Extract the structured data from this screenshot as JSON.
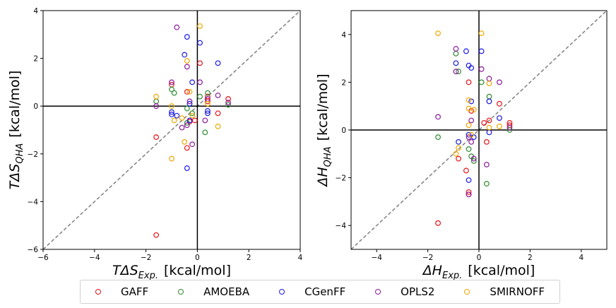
{
  "legend": [
    {
      "name": "GAFF",
      "color": "#e8141a"
    },
    {
      "name": "AMOEBA",
      "color": "#2e8b2e"
    },
    {
      "name": "CGenFF",
      "color": "#1a1ae6"
    },
    {
      "name": "OPLS2",
      "color": "#8b1a9b"
    },
    {
      "name": "SMIRNOFF",
      "color": "#f0a800"
    }
  ],
  "chart_data": [
    {
      "type": "scatter",
      "title": "",
      "xlabel_main": "TΔS",
      "xlabel_sub": "Exp.",
      "xlabel_unit": "[kcal/mol]",
      "ylabel_main": "TΔS",
      "ylabel_sub": "QHA",
      "ylabel_unit": "[kcal/mol]",
      "xlim": [
        -6,
        4
      ],
      "ylim": [
        -6,
        4
      ],
      "xticks": [
        -6,
        -4,
        -2,
        0,
        2,
        4
      ],
      "yticks": [
        -6,
        -4,
        -2,
        0,
        2,
        4
      ],
      "diagonal": true,
      "series": [
        {
          "name": "GAFF",
          "points": [
            [
              -1.6,
              -5.4
            ],
            [
              -1.6,
              -1.3
            ],
            [
              -1.0,
              0.9
            ],
            [
              -0.4,
              -1.75
            ],
            [
              -0.3,
              -0.65
            ],
            [
              -0.1,
              -0.6
            ],
            [
              0.1,
              1.8
            ],
            [
              0.4,
              0.4
            ],
            [
              0.4,
              0.2
            ],
            [
              0.8,
              -0.3
            ],
            [
              1.2,
              0.3
            ],
            [
              -0.4,
              0.6
            ]
          ]
        },
        {
          "name": "AMOEBA",
          "points": [
            [
              -1.6,
              0.2
            ],
            [
              -1.0,
              0.7
            ],
            [
              -0.9,
              0.55
            ],
            [
              -0.4,
              -0.1
            ],
            [
              -0.2,
              -0.3
            ],
            [
              0.1,
              0.4
            ],
            [
              0.3,
              -1.1
            ],
            [
              0.4,
              0.55
            ],
            [
              1.2,
              0.05
            ],
            [
              -0.4,
              -0.7
            ]
          ]
        },
        {
          "name": "CGenFF",
          "points": [
            [
              -1.0,
              -0.25
            ],
            [
              -1.0,
              -0.35
            ],
            [
              -0.8,
              -0.4
            ],
            [
              -0.5,
              2.15
            ],
            [
              -0.4,
              2.9
            ],
            [
              -0.4,
              -2.6
            ],
            [
              -0.3,
              0.1
            ],
            [
              -0.2,
              1.0
            ],
            [
              0.1,
              2.65
            ],
            [
              0.4,
              -0.2
            ],
            [
              0.4,
              -0.3
            ],
            [
              0.8,
              1.8
            ],
            [
              -0.3,
              -0.6
            ]
          ]
        },
        {
          "name": "OPLS2",
          "points": [
            [
              -1.6,
              0.0
            ],
            [
              -1.0,
              1.0
            ],
            [
              -0.8,
              3.3
            ],
            [
              -0.6,
              -0.9
            ],
            [
              -0.4,
              1.65
            ],
            [
              -0.3,
              0.2
            ],
            [
              -0.2,
              -1.6
            ],
            [
              0.1,
              1.0
            ],
            [
              0.3,
              -0.6
            ],
            [
              0.4,
              0.3
            ],
            [
              0.8,
              0.45
            ],
            [
              1.2,
              0.15
            ],
            [
              -0.4,
              -0.8
            ]
          ]
        },
        {
          "name": "SMIRNOFF",
          "points": [
            [
              -1.6,
              0.4
            ],
            [
              -1.0,
              -2.2
            ],
            [
              -0.9,
              -0.6
            ],
            [
              -0.5,
              -1.5
            ],
            [
              -0.4,
              1.9
            ],
            [
              -0.3,
              0.6
            ],
            [
              -0.2,
              -0.4
            ],
            [
              0.1,
              3.35
            ],
            [
              0.4,
              0.1
            ],
            [
              0.8,
              -0.85
            ],
            [
              -1.0,
              0.0
            ],
            [
              -0.6,
              -0.5
            ]
          ]
        }
      ]
    },
    {
      "type": "scatter",
      "title": "",
      "xlabel_main": "ΔH",
      "xlabel_sub": "Exp.",
      "xlabel_unit": "[kcal/mol]",
      "ylabel_main": "ΔH",
      "ylabel_sub": "QHA",
      "ylabel_unit": "[kcal/mol]",
      "xlim": [
        -5,
        5
      ],
      "ylim": [
        -5,
        5
      ],
      "xticks": [
        -4,
        -2,
        0,
        2,
        4
      ],
      "yticks": [
        -4,
        -2,
        0,
        2,
        4
      ],
      "diagonal": true,
      "series": [
        {
          "name": "GAFF",
          "points": [
            [
              -1.6,
              -3.9
            ],
            [
              -0.8,
              -1.2
            ],
            [
              -0.5,
              -1.7
            ],
            [
              -0.4,
              -2.6
            ],
            [
              -0.4,
              -2.7
            ],
            [
              -0.3,
              0.8
            ],
            [
              0.2,
              0.3
            ],
            [
              0.3,
              -0.5
            ],
            [
              0.4,
              0.4
            ],
            [
              0.8,
              1.1
            ],
            [
              1.2,
              0.3
            ],
            [
              1.2,
              0.2
            ],
            [
              -0.4,
              2.0
            ]
          ]
        },
        {
          "name": "AMOEBA",
          "points": [
            [
              -1.6,
              -0.3
            ],
            [
              -0.9,
              3.2
            ],
            [
              -0.4,
              -0.8
            ],
            [
              -0.3,
              -1.1
            ],
            [
              -0.2,
              -1.3
            ],
            [
              0.1,
              2.0
            ],
            [
              0.3,
              -2.25
            ],
            [
              0.4,
              1.4
            ],
            [
              1.2,
              0.0
            ],
            [
              -0.8,
              2.45
            ]
          ]
        },
        {
          "name": "CGenFF",
          "points": [
            [
              -0.9,
              2.8
            ],
            [
              -0.8,
              -0.5
            ],
            [
              -0.5,
              3.3
            ],
            [
              -0.4,
              2.7
            ],
            [
              -0.4,
              -2.1
            ],
            [
              -0.3,
              2.6
            ],
            [
              -0.3,
              1.2
            ],
            [
              -0.2,
              -0.3
            ],
            [
              0.1,
              3.3
            ],
            [
              0.4,
              1.2
            ],
            [
              0.4,
              -0.1
            ],
            [
              0.8,
              0.5
            ],
            [
              -0.4,
              -0.2
            ]
          ]
        },
        {
          "name": "OPLS2",
          "points": [
            [
              -1.6,
              0.55
            ],
            [
              -0.9,
              3.4
            ],
            [
              -0.9,
              2.45
            ],
            [
              -0.4,
              -0.3
            ],
            [
              -0.4,
              -2.7
            ],
            [
              -0.3,
              0.4
            ],
            [
              -0.2,
              -1.2
            ],
            [
              0.1,
              2.55
            ],
            [
              0.3,
              -1.45
            ],
            [
              0.4,
              2.15
            ],
            [
              0.8,
              2.0
            ],
            [
              1.2,
              0.1
            ],
            [
              -0.3,
              -0.5
            ]
          ]
        },
        {
          "name": "SMIRNOFF",
          "points": [
            [
              -1.6,
              4.05
            ],
            [
              -0.9,
              -1.0
            ],
            [
              -0.8,
              -0.75
            ],
            [
              -0.4,
              0.9
            ],
            [
              -0.4,
              1.25
            ],
            [
              -0.3,
              -0.2
            ],
            [
              -0.2,
              0.85
            ],
            [
              0.1,
              4.05
            ],
            [
              0.4,
              1.95
            ],
            [
              0.8,
              0.15
            ],
            [
              0.4,
              0.1
            ],
            [
              -0.4,
              0.2
            ]
          ]
        }
      ]
    }
  ]
}
